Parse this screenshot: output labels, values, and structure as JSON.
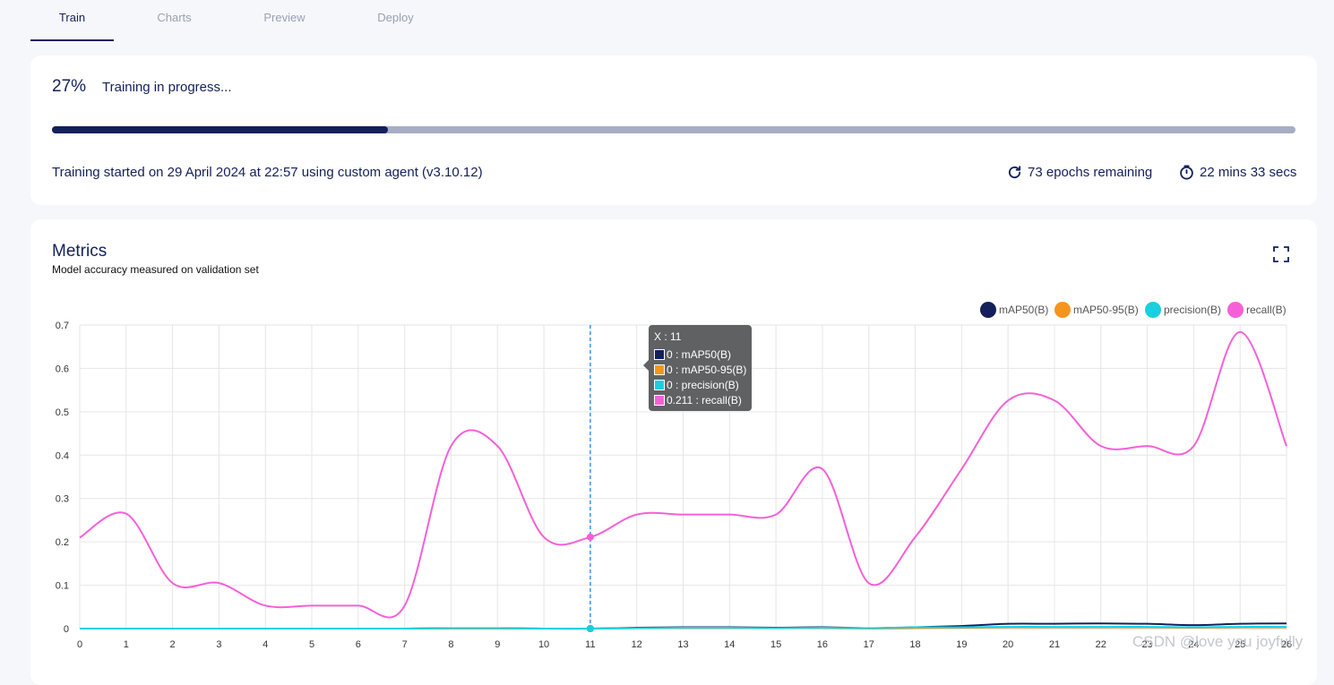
{
  "tabs": [
    {
      "label": "Train",
      "active": true
    },
    {
      "label": "Charts",
      "active": false
    },
    {
      "label": "Preview",
      "active": false
    },
    {
      "label": "Deploy",
      "active": false
    }
  ],
  "progress": {
    "percent_label": "27%",
    "status": "Training in progress...",
    "fraction": 0.27,
    "started": "Training started on 29 April 2024 at 22:57 using custom agent (v3.10.12)",
    "epochs_remaining": "73 epochs remaining",
    "time_remaining": "22 mins 33 secs"
  },
  "metrics": {
    "title": "Metrics",
    "subtitle": "Model accuracy measured on validation set"
  },
  "icons": {
    "refresh": "refresh-icon",
    "timer": "timer-icon",
    "expand": "expand-icon"
  },
  "colors": {
    "primary": "#13205b",
    "track": "#a8adc6",
    "mAP50": "#13205b",
    "mAP50_95": "#f7941d",
    "precision": "#18d0e0",
    "recall": "#f560d8"
  },
  "chart_data": {
    "type": "line",
    "x": [
      0,
      1,
      2,
      3,
      4,
      5,
      6,
      7,
      8,
      9,
      10,
      11,
      12,
      13,
      14,
      15,
      16,
      17,
      18,
      19,
      20,
      21,
      22,
      23,
      24,
      25,
      26
    ],
    "xticks": [
      "0",
      "1",
      "2",
      "3",
      "4",
      "5",
      "6",
      "7",
      "8",
      "9",
      "10",
      "11",
      "12",
      "13",
      "14",
      "15",
      "16",
      "17",
      "18",
      "19",
      "20",
      "21",
      "22",
      "23",
      "24",
      "25",
      "26"
    ],
    "yticks": [
      "0",
      "0.1",
      "0.2",
      "0.3",
      "0.4",
      "0.5",
      "0.6",
      "0.7"
    ],
    "ylim": [
      0,
      0.7
    ],
    "grid": true,
    "legend_position": "top-right",
    "series": [
      {
        "name": "mAP50(B)",
        "color": "#13205b",
        "values": [
          0,
          0,
          0,
          0,
          0,
          0,
          0,
          0,
          0.001,
          0.001,
          0,
          0,
          0.002,
          0.003,
          0.003,
          0.002,
          0.003,
          0.001,
          0.003,
          0.006,
          0.011,
          0.011,
          0.012,
          0.011,
          0.008,
          0.011,
          0.012
        ]
      },
      {
        "name": "mAP50-95(B)",
        "color": "#f7941d",
        "values": [
          0,
          0,
          0,
          0,
          0,
          0,
          0,
          0,
          0,
          0,
          0,
          0,
          0.001,
          0.001,
          0.001,
          0.001,
          0.001,
          0,
          0.001,
          0.002,
          0.003,
          0.003,
          0.003,
          0.003,
          0.002,
          0.003,
          0.003
        ]
      },
      {
        "name": "precision(B)",
        "color": "#18d0e0",
        "values": [
          0,
          0,
          0,
          0,
          0,
          0,
          0,
          0,
          0.001,
          0.001,
          0,
          0,
          0.001,
          0.002,
          0.002,
          0.001,
          0.002,
          0.001,
          0.003,
          0.003,
          0.004,
          0.004,
          0.004,
          0.004,
          0.003,
          0.004,
          0.004
        ]
      },
      {
        "name": "recall(B)",
        "color": "#f560d8",
        "values": [
          0.21,
          0.265,
          0.105,
          0.105,
          0.053,
          0.053,
          0.053,
          0.053,
          0.421,
          0.421,
          0.211,
          0.211,
          0.263,
          0.263,
          0.263,
          0.263,
          0.368,
          0.105,
          0.211,
          0.368,
          0.526,
          0.526,
          0.421,
          0.421,
          0.421,
          0.684,
          0.421
        ]
      }
    ],
    "tooltip": {
      "title": "X : 11",
      "rows": [
        {
          "label": "0 : mAP50(B)",
          "color": "#13205b"
        },
        {
          "label": "0 : mAP50-95(B)",
          "color": "#f7941d"
        },
        {
          "label": "0 : precision(B)",
          "color": "#18d0e0"
        },
        {
          "label": "0.211 : recall(B)",
          "color": "#f560d8"
        }
      ],
      "x_index": 11
    }
  },
  "watermark": "CSDN @love you joyfully"
}
